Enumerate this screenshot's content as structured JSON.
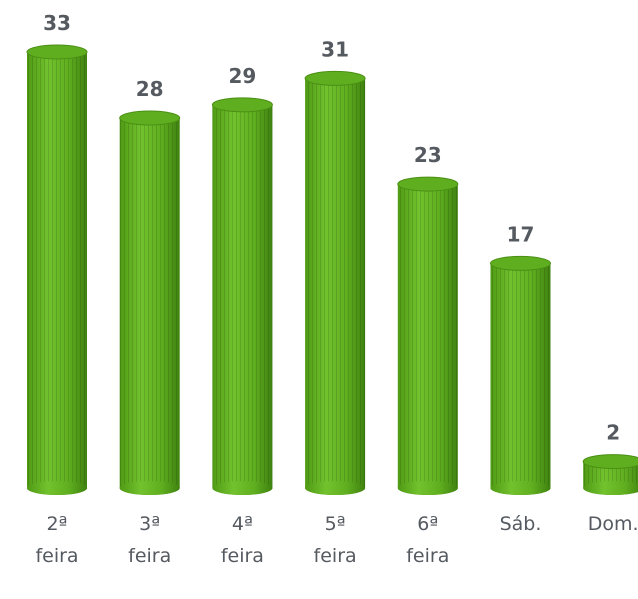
{
  "chart_data": {
    "type": "bar",
    "categories": [
      "2ª feira",
      "3ª feira",
      "4ª feira",
      "5ª feira",
      "6ª feira",
      "Sáb.",
      "Dom."
    ],
    "values": [
      33,
      28,
      29,
      31,
      23,
      17,
      2
    ],
    "color": "#5fae1f"
  }
}
